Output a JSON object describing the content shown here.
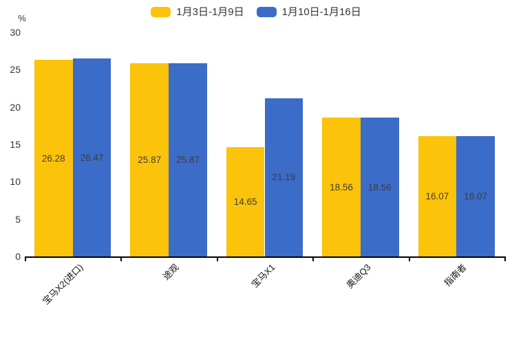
{
  "chart_data": {
    "type": "bar",
    "title": "",
    "categories": [
      "宝马X2(进口)",
      "途观",
      "宝马X1",
      "奥迪Q3",
      "指南者"
    ],
    "series": [
      {
        "name": "1月3日-1月9日",
        "color": "#FCC30B",
        "values": [
          26.28,
          25.87,
          14.65,
          18.56,
          16.07
        ]
      },
      {
        "name": "1月10日-1月16日",
        "color": "#3B6CC8",
        "values": [
          26.47,
          25.87,
          21.19,
          18.56,
          16.07
        ]
      }
    ],
    "xlabel": "",
    "ylabel": "%",
    "ylim": [
      0,
      30
    ],
    "yticks": [
      0,
      5,
      10,
      15,
      20,
      25,
      30
    ],
    "grid": false,
    "legend_position": "top-center",
    "value_label_position": "inside-center",
    "value_label_decimals": 2,
    "axis_color": "#000000",
    "tick_text_color": "#333333",
    "value_label_color": "#3c3c3c"
  }
}
